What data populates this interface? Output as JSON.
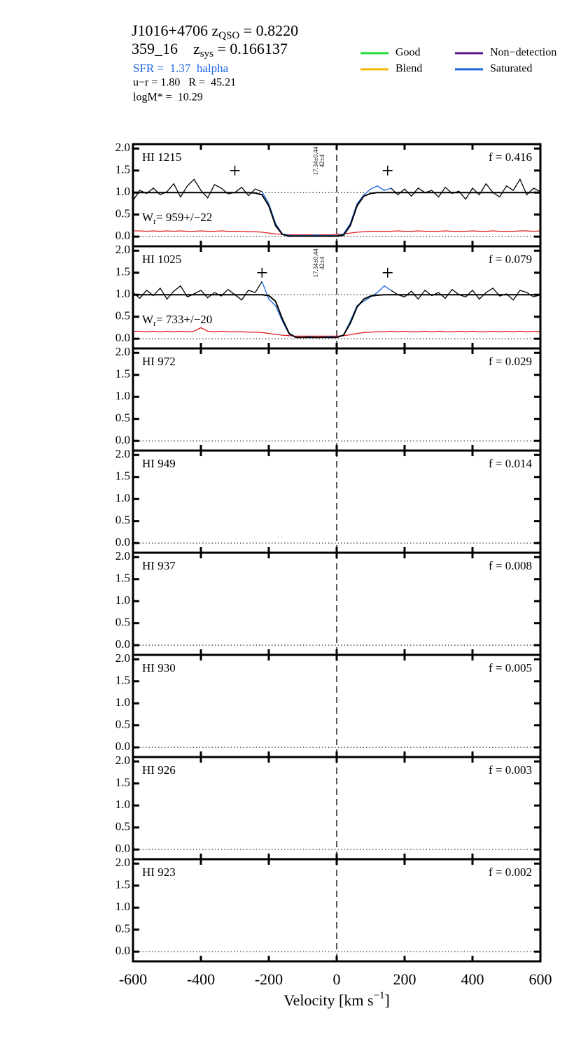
{
  "header": {
    "line1": [
      "J1016+4706 z",
      "QSO",
      " = 0.8220"
    ],
    "line2": [
      "359_16    z",
      "sys",
      " = 0.166137"
    ],
    "sfr": "SFR =  1.37  halpha",
    "color_line": "u−r = 1.80   R =  45.21",
    "mass": "logM* =  10.29"
  },
  "legend": [
    {
      "name": "Good",
      "color": "#22e03a"
    },
    {
      "name": "Blend",
      "color": "#f5b50a"
    },
    {
      "name": "Non−detection",
      "color": "#5a1a8c"
    },
    {
      "name": "Saturated",
      "color": "#1a66e0"
    }
  ],
  "chart_data": {
    "type": "line",
    "xlabel": [
      "Velocity [km s",
      "−1",
      "]"
    ],
    "xlim": [
      -600,
      600
    ],
    "xticks": [
      -600,
      -400,
      -200,
      0,
      200,
      400,
      600
    ],
    "vline": 0,
    "ylim": [
      -0.22,
      2.1
    ],
    "yticks": [
      {
        "value": 0,
        "label": "0.0"
      },
      {
        "value": 0.5,
        "label": "0.5"
      },
      {
        "value": 1,
        "label": "1.0"
      },
      {
        "value": 1.5,
        "label": "1.5"
      },
      {
        "value": 2,
        "label": "2.0"
      }
    ],
    "x": [
      -600,
      -580,
      -560,
      -540,
      -520,
      -500,
      -480,
      -460,
      -440,
      -420,
      -400,
      -380,
      -360,
      -340,
      -320,
      -300,
      -280,
      -260,
      -240,
      -220,
      -200,
      -180,
      -160,
      -140,
      -120,
      -100,
      -80,
      -60,
      -40,
      -20,
      0,
      20,
      40,
      60,
      80,
      100,
      120,
      140,
      160,
      180,
      200,
      220,
      240,
      260,
      280,
      300,
      320,
      340,
      360,
      380,
      400,
      420,
      440,
      460,
      480,
      500,
      520,
      540,
      560,
      580,
      600
    ],
    "panels": [
      {
        "label": "HI 1215",
        "f_label": "f = 0.416",
        "w_label": [
          "W",
          "r",
          "= 959+/−22"
        ],
        "annotation": [
          "17.34±0.44",
          "42±4"
        ],
        "dotted": [
          0,
          1
        ],
        "markers": {
          "x": [
            -300,
            150
          ],
          "y": [
            1.5,
            1.5
          ]
        },
        "series": [
          {
            "name": "error",
            "color": "#e02020",
            "values": [
              0.13,
              0.13,
              0.12,
              0.13,
              0.12,
              0.13,
              0.12,
              0.13,
              0.12,
              0.12,
              0.13,
              0.12,
              0.12,
              0.13,
              0.12,
              0.12,
              0.12,
              0.11,
              0.11,
              0.1,
              0.08,
              0.06,
              0.05,
              0.04,
              0.04,
              0.04,
              0.04,
              0.04,
              0.04,
              0.04,
              0.05,
              0.06,
              0.08,
              0.1,
              0.11,
              0.12,
              0.12,
              0.12,
              0.12,
              0.13,
              0.12,
              0.12,
              0.13,
              0.12,
              0.12,
              0.12,
              0.13,
              0.12,
              0.12,
              0.12,
              0.13,
              0.12,
              0.12,
              0.13,
              0.12,
              0.12,
              0.12,
              0.13,
              0.13,
              0.12,
              0.13
            ]
          },
          {
            "name": "flux",
            "color": "#000000",
            "values": [
              0.82,
              1.05,
              0.98,
              1.1,
              0.95,
              1.02,
              1.2,
              0.9,
              1.15,
              1.3,
              1.05,
              0.88,
              1.18,
              1.1,
              0.97,
              1.0,
              1.12,
              0.93,
              1.08,
              1.02,
              null,
              null,
              null,
              null,
              null,
              null,
              null,
              null,
              null,
              null,
              null,
              null,
              null,
              null,
              null,
              null,
              null,
              null,
              1.1,
              0.95,
              1.08,
              0.92,
              1.1,
              1.0,
              1.05,
              0.9,
              1.12,
              0.98,
              1.03,
              0.85,
              1.1,
              0.95,
              1.2,
              1.0,
              0.9,
              1.15,
              1.05,
              1.3,
              0.95,
              1.1,
              1.02
            ]
          },
          {
            "name": "saturated",
            "color": "#1a66e0",
            "values": [
              null,
              null,
              null,
              null,
              null,
              null,
              null,
              null,
              null,
              null,
              null,
              null,
              null,
              null,
              null,
              null,
              null,
              null,
              null,
              1.02,
              0.75,
              0.3,
              0.06,
              0.03,
              0.02,
              0.03,
              0.02,
              0.04,
              0.02,
              0.03,
              0.02,
              0.06,
              0.3,
              0.75,
              0.95,
              1.08,
              1.15,
              1.05,
              1.1,
              null,
              null,
              null,
              null,
              null,
              null,
              null,
              null,
              null,
              null,
              null,
              null,
              null,
              null,
              null,
              null,
              null,
              null,
              null,
              null,
              null,
              null
            ]
          },
          {
            "name": "model",
            "color": "#000000",
            "values": [
              1,
              1,
              1,
              1,
              1,
              1,
              1,
              1,
              1,
              1,
              1,
              1,
              1,
              1,
              1,
              1,
              1,
              1,
              0.99,
              0.95,
              0.7,
              0.25,
              0.05,
              0.01,
              0.01,
              0.01,
              0.01,
              0.01,
              0.01,
              0.01,
              0.01,
              0.03,
              0.25,
              0.7,
              0.92,
              0.98,
              1,
              1,
              1,
              1,
              1,
              1,
              1,
              1,
              1,
              1,
              1,
              1,
              1,
              1,
              1,
              1,
              1,
              1,
              1,
              1,
              1,
              1,
              1,
              1,
              1
            ]
          }
        ]
      },
      {
        "label": "HI 1025",
        "f_label": "f = 0.079",
        "w_label": [
          "W",
          "r",
          "= 733+/−20"
        ],
        "annotation": [
          "17.34±0.44",
          "42±4"
        ],
        "dotted": [
          0,
          1
        ],
        "markers": {
          "x": [
            -220,
            150
          ],
          "y": [
            1.5,
            1.5
          ]
        },
        "series": [
          {
            "name": "error",
            "color": "#e02020",
            "values": [
              0.17,
              0.17,
              0.16,
              0.17,
              0.16,
              0.17,
              0.16,
              0.17,
              0.16,
              0.17,
              0.25,
              0.17,
              0.16,
              0.17,
              0.16,
              0.16,
              0.16,
              0.15,
              0.15,
              0.14,
              0.12,
              0.1,
              0.08,
              0.07,
              0.06,
              0.06,
              0.06,
              0.06,
              0.06,
              0.06,
              0.06,
              0.07,
              0.09,
              0.12,
              0.14,
              0.15,
              0.16,
              0.16,
              0.17,
              0.16,
              0.17,
              0.16,
              0.16,
              0.17,
              0.16,
              0.17,
              0.16,
              0.16,
              0.17,
              0.16,
              0.17,
              0.16,
              0.16,
              0.17,
              0.16,
              0.17,
              0.16,
              0.17,
              0.16,
              0.17,
              0.16
            ]
          },
          {
            "name": "flux",
            "color": "#000000",
            "values": [
              1.05,
              0.92,
              1.1,
              0.98,
              1.15,
              0.9,
              1.08,
              1.2,
              0.95,
              1.02,
              1.1,
              0.93,
              1.05,
              0.97,
              1.12,
              1.0,
              0.88,
              1.1,
              1.05,
              1.3,
              null,
              null,
              null,
              null,
              null,
              null,
              null,
              null,
              null,
              null,
              null,
              null,
              null,
              null,
              null,
              null,
              null,
              null,
              1.1,
              1.0,
              0.95,
              1.08,
              0.9,
              1.1,
              0.98,
              1.05,
              0.92,
              1.12,
              1.0,
              0.95,
              1.1,
              0.9,
              1.05,
              1.15,
              0.97,
              1.02,
              0.88,
              1.1,
              1.05,
              0.95,
              1.0
            ]
          },
          {
            "name": "saturated",
            "color": "#1a66e0",
            "values": [
              null,
              null,
              null,
              null,
              null,
              null,
              null,
              null,
              null,
              null,
              null,
              null,
              null,
              null,
              null,
              null,
              null,
              null,
              null,
              1.3,
              0.9,
              0.75,
              0.4,
              0.1,
              0.04,
              0.03,
              0.05,
              0.03,
              0.04,
              0.05,
              0.04,
              0.08,
              0.4,
              0.75,
              0.85,
              0.95,
              1.05,
              1.2,
              1.1,
              null,
              null,
              null,
              null,
              null,
              null,
              null,
              null,
              null,
              null,
              null,
              null,
              null,
              null,
              null,
              null,
              null,
              null,
              null,
              null,
              null,
              null
            ]
          },
          {
            "name": "model",
            "color": "#000000",
            "values": [
              1,
              1,
              1,
              1,
              1,
              1,
              1,
              1,
              1,
              1,
              1,
              1,
              1,
              1,
              1,
              1,
              1,
              1,
              1,
              1,
              0.98,
              0.85,
              0.45,
              0.12,
              0.03,
              0.03,
              0.03,
              0.03,
              0.03,
              0.03,
              0.03,
              0.08,
              0.35,
              0.72,
              0.9,
              0.97,
              0.99,
              1,
              1,
              1,
              1,
              1,
              1,
              1,
              1,
              1,
              1,
              1,
              1,
              1,
              1,
              1,
              1,
              1,
              1,
              1,
              1,
              1,
              1,
              1,
              1
            ]
          }
        ]
      },
      {
        "label": "HI 972",
        "f_label": "f = 0.029",
        "dotted": [
          0
        ],
        "series": []
      },
      {
        "label": "HI 949",
        "f_label": "f = 0.014",
        "dotted": [
          0
        ],
        "series": []
      },
      {
        "label": "HI 937",
        "f_label": "f = 0.008",
        "dotted": [
          0
        ],
        "series": []
      },
      {
        "label": "HI 930",
        "f_label": "f = 0.005",
        "dotted": [
          0
        ],
        "series": []
      },
      {
        "label": "HI 926",
        "f_label": "f = 0.003",
        "dotted": [
          0
        ],
        "series": []
      },
      {
        "label": "HI 923",
        "f_label": "f = 0.002",
        "dotted": [
          0
        ],
        "series": []
      }
    ]
  }
}
